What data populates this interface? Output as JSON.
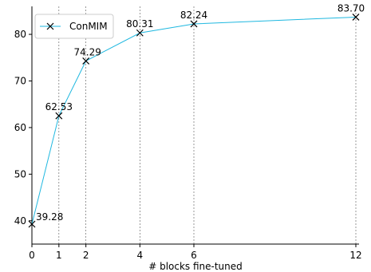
{
  "chart_data": {
    "type": "line",
    "xlabel": "# blocks fine-tuned",
    "ylabel": "",
    "xlim": [
      0,
      12
    ],
    "ylim": [
      35,
      86
    ],
    "xticks": [
      0,
      1,
      2,
      4,
      6,
      12
    ],
    "yticks": [
      40,
      50,
      60,
      70,
      80
    ],
    "vertical_gridlines_at_x": [
      1,
      2,
      4,
      6,
      12
    ],
    "legend_position": "top-left",
    "series_color": "#1fb8e0",
    "series": [
      {
        "name": "ConMIM",
        "marker": "x",
        "x": [
          0,
          1,
          2,
          4,
          6,
          12
        ],
        "y": [
          39.28,
          62.53,
          74.29,
          80.31,
          82.24,
          83.7
        ],
        "labels": [
          "39.28",
          "62.53",
          "74.29",
          "80.31",
          "82.24",
          "83.70"
        ]
      }
    ]
  }
}
